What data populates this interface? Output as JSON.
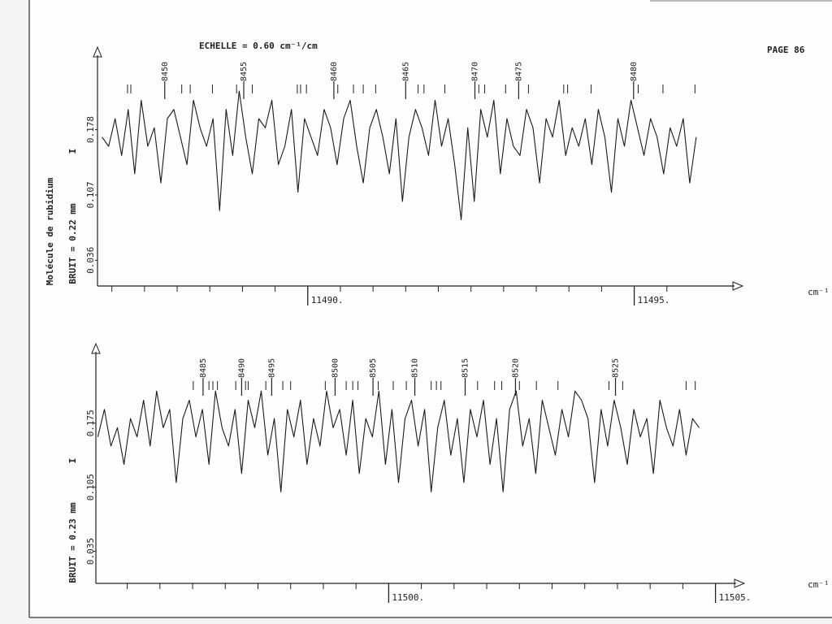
{
  "header": {
    "scale": "ECHELLE = 0.60 cm⁻¹/cm",
    "page": "PAGE 86",
    "side_label": "Molécule de rubidium"
  },
  "chart_data": [
    {
      "type": "line",
      "ylabel": "I",
      "xlabel": "cm⁻¹",
      "noise_label": "BRUIT = 0.22 mm",
      "color": "#1a1a1a",
      "xlim": [
        11486.78,
        11496.66
      ],
      "ylim": [
        0.008,
        0.266
      ],
      "xticks": [
        {
          "value": 11490,
          "label": "11490."
        },
        {
          "value": 11495,
          "label": "11495."
        }
      ],
      "xminorticks": [
        11487,
        11487.5,
        11488,
        11488.5,
        11489,
        11489.5,
        11490.5,
        11491,
        11491.5,
        11492,
        11492.5,
        11493,
        11493.5,
        11494,
        11494.5,
        11495.5
      ],
      "yticks": [
        0.036,
        0.107,
        0.178
      ],
      "line_labels": [
        {
          "x": 11487.81,
          "label": "8450"
        },
        {
          "x": 11489.02,
          "label": "8455"
        },
        {
          "x": 11490.4,
          "label": "8460"
        },
        {
          "x": 11491.5,
          "label": "8465"
        },
        {
          "x": 11492.56,
          "label": "8470"
        },
        {
          "x": 11493.23,
          "label": "8475"
        },
        {
          "x": 11494.99,
          "label": "8480"
        }
      ],
      "line_ticks": [
        11487.24,
        11487.29,
        11488.07,
        11488.2,
        11488.54,
        11488.91,
        11489.15,
        11489.84,
        11489.89,
        11489.98,
        11490.46,
        11490.7,
        11490.85,
        11491.04,
        11491.69,
        11491.78,
        11492.1,
        11492.62,
        11492.71,
        11493.03,
        11493.38,
        11493.92,
        11493.98,
        11494.34,
        11495.06,
        11495.44,
        11495.93
      ],
      "x": [
        11486.85,
        11486.95,
        11487.05,
        11487.15,
        11487.25,
        11487.35,
        11487.45,
        11487.55,
        11487.65,
        11487.75,
        11487.85,
        11487.95,
        11488.05,
        11488.15,
        11488.25,
        11488.35,
        11488.45,
        11488.55,
        11488.65,
        11488.75,
        11488.85,
        11488.95,
        11489.05,
        11489.15,
        11489.25,
        11489.35,
        11489.45,
        11489.55,
        11489.65,
        11489.75,
        11489.85,
        11489.95,
        11490.05,
        11490.15,
        11490.25,
        11490.35,
        11490.45,
        11490.55,
        11490.65,
        11490.75,
        11490.85,
        11490.95,
        11491.05,
        11491.15,
        11491.25,
        11491.35,
        11491.45,
        11491.55,
        11491.65,
        11491.75,
        11491.85,
        11491.95,
        11492.05,
        11492.15,
        11492.25,
        11492.35,
        11492.45,
        11492.55,
        11492.65,
        11492.75,
        11492.85,
        11492.95,
        11493.05,
        11493.15,
        11493.25,
        11493.35,
        11493.45,
        11493.55,
        11493.65,
        11493.75,
        11493.85,
        11493.95,
        11494.05,
        11494.15,
        11494.25,
        11494.35,
        11494.45,
        11494.55,
        11494.65,
        11494.75,
        11494.85,
        11494.95,
        11495.05,
        11495.15,
        11495.25,
        11495.35,
        11495.45,
        11495.55,
        11495.65,
        11495.75,
        11495.85,
        11495.95
      ],
      "values": [
        0.17,
        0.16,
        0.19,
        0.15,
        0.2,
        0.13,
        0.21,
        0.16,
        0.18,
        0.12,
        0.19,
        0.2,
        0.17,
        0.14,
        0.21,
        0.18,
        0.16,
        0.19,
        0.09,
        0.2,
        0.15,
        0.22,
        0.17,
        0.13,
        0.19,
        0.18,
        0.21,
        0.14,
        0.16,
        0.2,
        0.11,
        0.19,
        0.17,
        0.15,
        0.2,
        0.18,
        0.14,
        0.19,
        0.21,
        0.16,
        0.12,
        0.18,
        0.2,
        0.17,
        0.13,
        0.19,
        0.1,
        0.17,
        0.2,
        0.18,
        0.15,
        0.21,
        0.16,
        0.19,
        0.14,
        0.08,
        0.18,
        0.1,
        0.2,
        0.17,
        0.21,
        0.13,
        0.19,
        0.16,
        0.15,
        0.2,
        0.18,
        0.12,
        0.19,
        0.17,
        0.21,
        0.15,
        0.18,
        0.16,
        0.19,
        0.14,
        0.2,
        0.17,
        0.11,
        0.19,
        0.16,
        0.21,
        0.18,
        0.15,
        0.19,
        0.17,
        0.13,
        0.18,
        0.16,
        0.19,
        0.12,
        0.17
      ]
    },
    {
      "type": "line",
      "ylabel": "I",
      "xlabel": "cm⁻¹",
      "noise_label": "BRUIT = 0.23 mm",
      "color": "#1a1a1a",
      "xlim": [
        11495.52,
        11505.44
      ],
      "ylim": [
        0,
        0.26
      ],
      "xticks": [
        {
          "value": 11500,
          "label": "11500."
        },
        {
          "value": 11505,
          "label": "11505."
        }
      ],
      "xminorticks": [
        11496,
        11496.5,
        11497,
        11497.5,
        11498,
        11498.5,
        11499,
        11499.5,
        11500.5,
        11501,
        11501.5,
        11502,
        11502.5,
        11503,
        11503.5,
        11504,
        11504.5
      ],
      "yticks": [
        0.035,
        0.105,
        0.175
      ],
      "line_labels": [
        {
          "x": 11497.16,
          "label": "8485"
        },
        {
          "x": 11497.75,
          "label": "8490"
        },
        {
          "x": 11498.21,
          "label": "8495"
        },
        {
          "x": 11499.18,
          "label": "8500"
        },
        {
          "x": 11499.76,
          "label": "8505"
        },
        {
          "x": 11500.4,
          "label": "8510"
        },
        {
          "x": 11501.17,
          "label": "8515"
        },
        {
          "x": 11501.94,
          "label": "8520"
        },
        {
          "x": 11503.47,
          "label": "8525"
        }
      ],
      "line_ticks": [
        11497.01,
        11497.25,
        11497.31,
        11497.38,
        11497.66,
        11497.81,
        11497.85,
        11498.12,
        11498.38,
        11498.5,
        11499.03,
        11499.35,
        11499.45,
        11499.53,
        11499.84,
        11500.07,
        11500.27,
        11500.65,
        11500.73,
        11500.8,
        11501.36,
        11501.62,
        11501.73,
        11502.0,
        11502.26,
        11502.59,
        11503.37,
        11503.58,
        11504.55,
        11504.69
      ],
      "x": [
        11495.55,
        11495.65,
        11495.75,
        11495.85,
        11495.95,
        11496.05,
        11496.15,
        11496.25,
        11496.35,
        11496.45,
        11496.55,
        11496.65,
        11496.75,
        11496.85,
        11496.95,
        11497.05,
        11497.15,
        11497.25,
        11497.35,
        11497.45,
        11497.55,
        11497.65,
        11497.75,
        11497.85,
        11497.95,
        11498.05,
        11498.15,
        11498.25,
        11498.35,
        11498.45,
        11498.55,
        11498.65,
        11498.75,
        11498.85,
        11498.95,
        11499.05,
        11499.15,
        11499.25,
        11499.35,
        11499.45,
        11499.55,
        11499.65,
        11499.75,
        11499.85,
        11499.95,
        11500.05,
        11500.15,
        11500.25,
        11500.35,
        11500.45,
        11500.55,
        11500.65,
        11500.75,
        11500.85,
        11500.95,
        11501.05,
        11501.15,
        11501.25,
        11501.35,
        11501.45,
        11501.55,
        11501.65,
        11501.75,
        11501.85,
        11501.95,
        11502.05,
        11502.15,
        11502.25,
        11502.35,
        11502.45,
        11502.55,
        11502.65,
        11502.75,
        11502.85,
        11502.95,
        11503.05,
        11503.15,
        11503.25,
        11503.35,
        11503.45,
        11503.55,
        11503.65,
        11503.75,
        11503.85,
        11503.95,
        11504.05,
        11504.15,
        11504.25,
        11504.35,
        11504.45,
        11504.55,
        11504.65,
        11504.75
      ],
      "values": [
        0.16,
        0.19,
        0.15,
        0.17,
        0.13,
        0.18,
        0.16,
        0.2,
        0.15,
        0.21,
        0.17,
        0.19,
        0.11,
        0.18,
        0.2,
        0.16,
        0.19,
        0.13,
        0.21,
        0.17,
        0.15,
        0.19,
        0.12,
        0.2,
        0.17,
        0.21,
        0.14,
        0.18,
        0.1,
        0.19,
        0.16,
        0.2,
        0.13,
        0.18,
        0.15,
        0.21,
        0.17,
        0.19,
        0.14,
        0.2,
        0.12,
        0.18,
        0.16,
        0.21,
        0.13,
        0.19,
        0.11,
        0.18,
        0.2,
        0.15,
        0.19,
        0.1,
        0.17,
        0.2,
        0.14,
        0.18,
        0.11,
        0.19,
        0.16,
        0.2,
        0.13,
        0.18,
        0.1,
        0.19,
        0.21,
        0.15,
        0.18,
        0.12,
        0.2,
        0.17,
        0.14,
        0.19,
        0.16,
        0.21,
        0.2,
        0.18,
        0.11,
        0.19,
        0.15,
        0.2,
        0.17,
        0.13,
        0.19,
        0.16,
        0.18,
        0.12,
        0.2,
        0.17,
        0.15,
        0.19,
        0.14,
        0.18,
        0.17
      ]
    }
  ]
}
